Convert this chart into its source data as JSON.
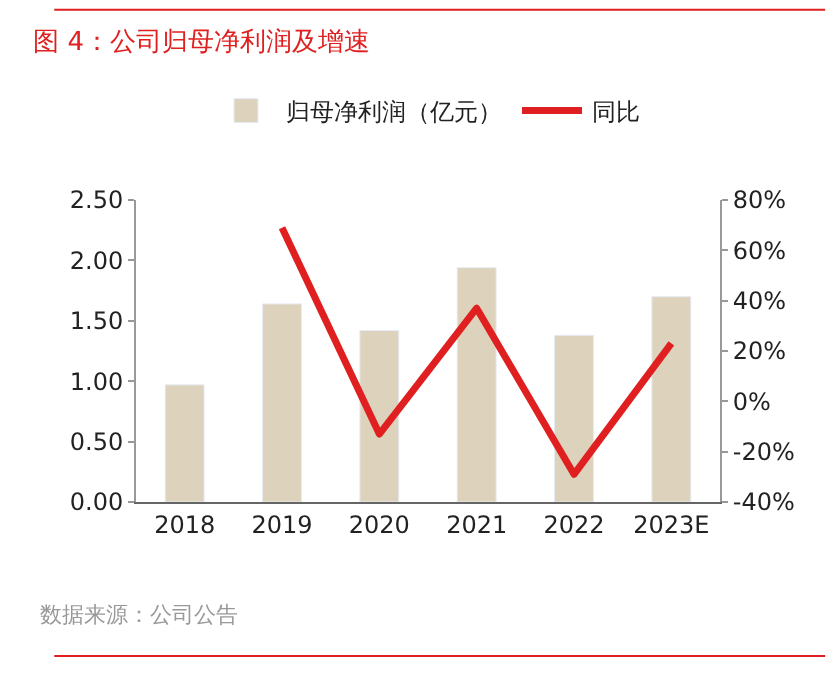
{
  "chart_data": {
    "type": "bar",
    "title": "图 4：公司归母净利润及增速",
    "categories": [
      "2018",
      "2019",
      "2020",
      "2021",
      "2022",
      "2023E"
    ],
    "series": [
      {
        "name": "归母净利润（亿元）",
        "color": "#ddd3bc",
        "values": [
          0.97,
          1.64,
          1.42,
          1.94,
          1.38,
          1.7
        ]
      },
      {
        "name": "同比",
        "type": "line",
        "axis": "y2",
        "color": "#e02020",
        "values": [
          null,
          69,
          -13,
          37,
          -29,
          23
        ]
      }
    ],
    "ylim": [
      0,
      2.5
    ],
    "yticks": [
      {
        "value": 0,
        "label": "0.00"
      },
      {
        "value": 0.5,
        "label": "0.50"
      },
      {
        "value": 1,
        "label": "1.00"
      },
      {
        "value": 1.5,
        "label": "1.50"
      },
      {
        "value": 2,
        "label": "2.00"
      },
      {
        "value": 2.5,
        "label": "2.50"
      }
    ],
    "y2lim": [
      -40,
      80
    ],
    "y2ticks": [
      {
        "value": -40,
        "label": "-40%"
      },
      {
        "value": -20,
        "label": "-20%"
      },
      {
        "value": 0,
        "label": "0%"
      },
      {
        "value": 20,
        "label": "20%"
      },
      {
        "value": 40,
        "label": "40%"
      },
      {
        "value": 60,
        "label": "60%"
      },
      {
        "value": 80,
        "label": "80%"
      }
    ],
    "legend": "top",
    "marker": "none",
    "line_style": "solid",
    "annotations": [
      "数据来源：公司公告"
    ]
  }
}
